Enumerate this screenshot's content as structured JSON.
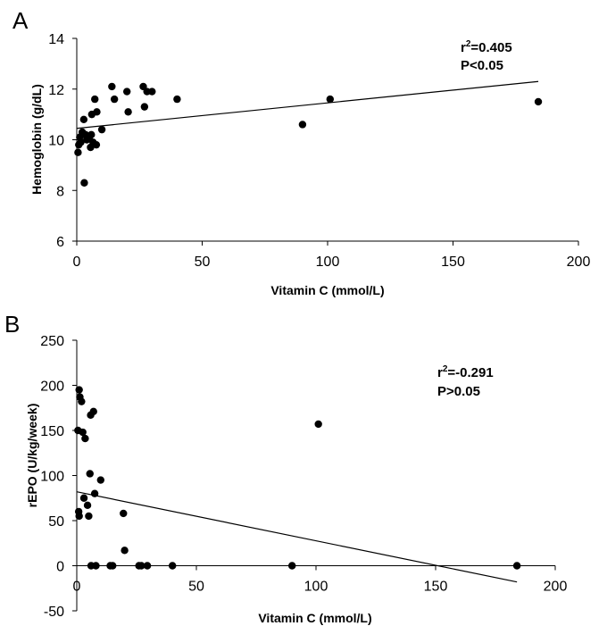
{
  "chart_data": [
    {
      "type": "scatter",
      "panel_label": "A",
      "xlabel": "Vitamin C (mmol/L)",
      "ylabel": "Hemoglobin (g/dL)",
      "xlim": [
        0,
        200
      ],
      "ylim": [
        6,
        14
      ],
      "xticks": [
        0,
        50,
        100,
        150,
        200
      ],
      "yticks": [
        6,
        8,
        10,
        12,
        14
      ],
      "grid": false,
      "annotation": {
        "r_prefix": "r",
        "r_exp": "2",
        "r_value": "=0.405",
        "p": "P<0.05"
      },
      "trendline": {
        "x": [
          0,
          184
        ],
        "y": [
          10.45,
          12.3
        ]
      },
      "points": [
        {
          "x": 0.5,
          "y": 9.5
        },
        {
          "x": 0.8,
          "y": 9.8
        },
        {
          "x": 1.2,
          "y": 10.1
        },
        {
          "x": 1.6,
          "y": 9.9
        },
        {
          "x": 2.2,
          "y": 10.3
        },
        {
          "x": 2.8,
          "y": 10.8
        },
        {
          "x": 3.0,
          "y": 8.3
        },
        {
          "x": 3.5,
          "y": 10.2
        },
        {
          "x": 4.0,
          "y": 10.0
        },
        {
          "x": 5.0,
          "y": 10.1
        },
        {
          "x": 5.5,
          "y": 9.7
        },
        {
          "x": 5.8,
          "y": 10.2
        },
        {
          "x": 6.0,
          "y": 11.0
        },
        {
          "x": 6.5,
          "y": 9.9
        },
        {
          "x": 7.2,
          "y": 11.6
        },
        {
          "x": 7.8,
          "y": 9.8
        },
        {
          "x": 8.0,
          "y": 11.1
        },
        {
          "x": 10.0,
          "y": 10.4
        },
        {
          "x": 14.0,
          "y": 12.1
        },
        {
          "x": 15.0,
          "y": 11.6
        },
        {
          "x": 20.0,
          "y": 11.9
        },
        {
          "x": 20.5,
          "y": 11.1
        },
        {
          "x": 26.5,
          "y": 12.1
        },
        {
          "x": 27.0,
          "y": 11.3
        },
        {
          "x": 28.0,
          "y": 11.9
        },
        {
          "x": 30.0,
          "y": 11.9
        },
        {
          "x": 40.0,
          "y": 11.6
        },
        {
          "x": 90.0,
          "y": 10.6
        },
        {
          "x": 101.0,
          "y": 11.6
        },
        {
          "x": 184.0,
          "y": 11.5
        }
      ]
    },
    {
      "type": "scatter",
      "panel_label": "B",
      "xlabel": "Vitamin C (mmol/L)",
      "ylabel": "rEPO (U/kg/week)",
      "xlim": [
        0,
        200
      ],
      "ylim": [
        -50,
        250
      ],
      "xticks": [
        0,
        50,
        100,
        150,
        200
      ],
      "yticks": [
        -50,
        0,
        50,
        100,
        150,
        200,
        250
      ],
      "grid": false,
      "annotation": {
        "r_prefix": "r",
        "r_exp": "2",
        "r_value": "=-0.291",
        "p": "P>0.05"
      },
      "trendline": {
        "x": [
          0,
          184
        ],
        "y": [
          82,
          -18
        ]
      },
      "points": [
        {
          "x": 0.5,
          "y": 150
        },
        {
          "x": 0.8,
          "y": 60
        },
        {
          "x": 1.0,
          "y": 55
        },
        {
          "x": 1.0,
          "y": 195
        },
        {
          "x": 1.3,
          "y": 187
        },
        {
          "x": 2.0,
          "y": 182
        },
        {
          "x": 2.5,
          "y": 148
        },
        {
          "x": 3.0,
          "y": 75
        },
        {
          "x": 3.5,
          "y": 141
        },
        {
          "x": 4.5,
          "y": 67
        },
        {
          "x": 5.0,
          "y": 55
        },
        {
          "x": 5.5,
          "y": 102
        },
        {
          "x": 5.8,
          "y": 167
        },
        {
          "x": 6.0,
          "y": 0
        },
        {
          "x": 7.0,
          "y": 171
        },
        {
          "x": 7.5,
          "y": 80
        },
        {
          "x": 8.0,
          "y": 0
        },
        {
          "x": 10.0,
          "y": 95
        },
        {
          "x": 14.0,
          "y": 0
        },
        {
          "x": 15.0,
          "y": 0
        },
        {
          "x": 19.5,
          "y": 58
        },
        {
          "x": 20.0,
          "y": 17
        },
        {
          "x": 26.0,
          "y": 0
        },
        {
          "x": 27.0,
          "y": 0
        },
        {
          "x": 29.5,
          "y": 0
        },
        {
          "x": 40.0,
          "y": 0
        },
        {
          "x": 90.0,
          "y": 0
        },
        {
          "x": 101.0,
          "y": 157
        },
        {
          "x": 184.0,
          "y": 0
        }
      ]
    }
  ]
}
